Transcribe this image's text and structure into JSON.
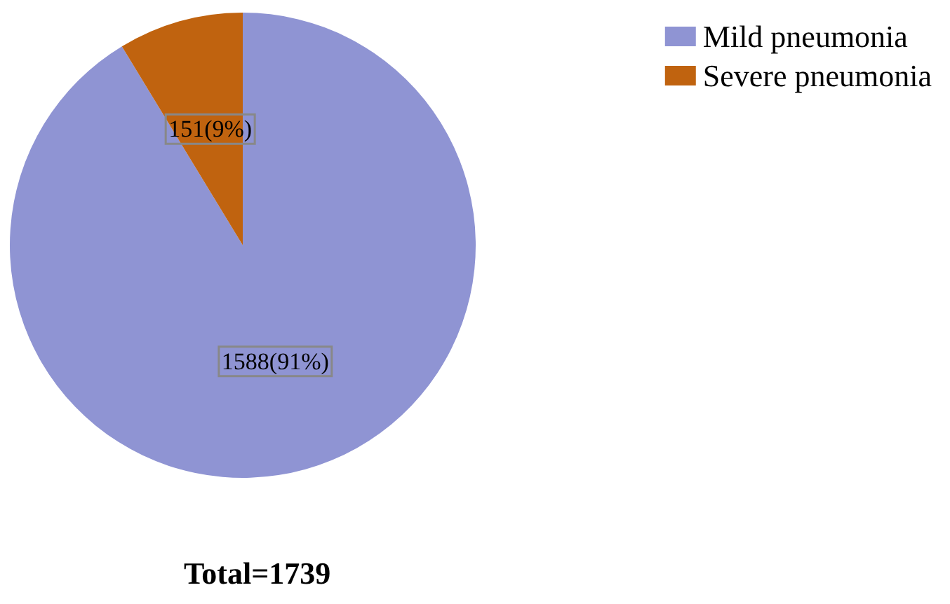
{
  "chart_data": {
    "type": "pie",
    "categories": [
      "Mild pneumonia",
      "Severe pneumonia"
    ],
    "values": [
      1588,
      151
    ],
    "colors": [
      "#8f94d3",
      "#c0630f"
    ],
    "value_labels": [
      "1588(91%)",
      "151(9%)"
    ],
    "legend": "top right",
    "annotations": [
      "Total=1739"
    ]
  }
}
